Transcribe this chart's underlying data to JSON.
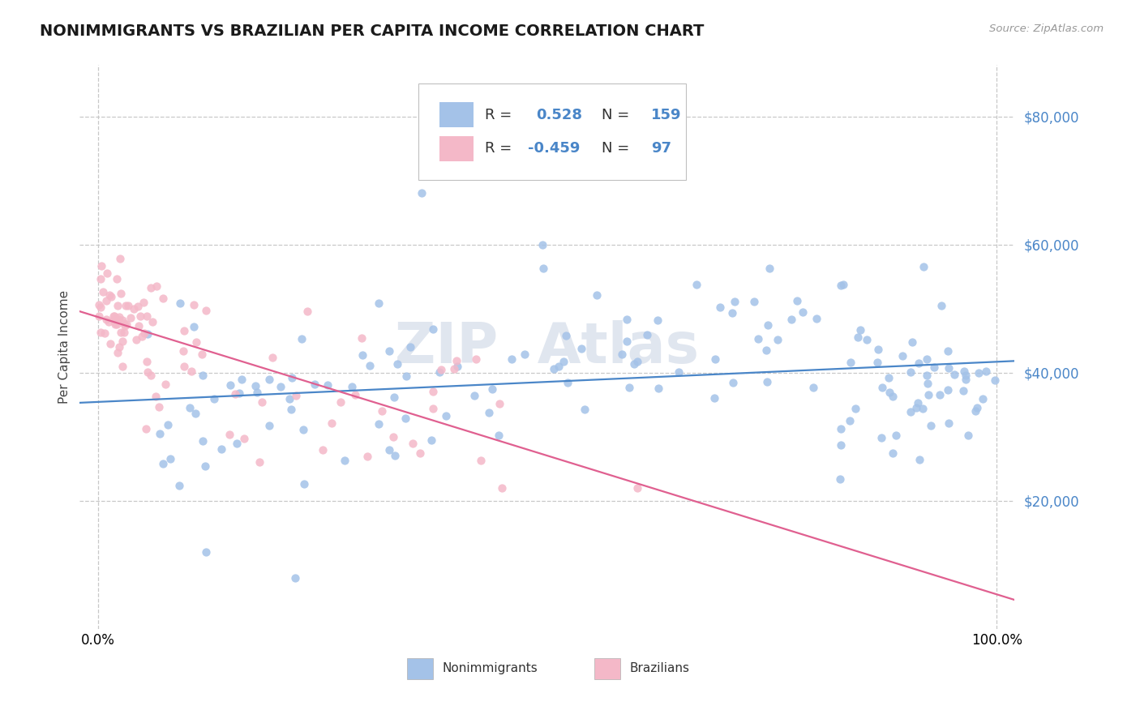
{
  "title": "NONIMMIGRANTS VS BRAZILIAN PER CAPITA INCOME CORRELATION CHART",
  "source_text": "Source: ZipAtlas.com",
  "ylabel": "Per Capita Income",
  "xlim": [
    -0.02,
    1.02
  ],
  "ylim": [
    0,
    88000
  ],
  "yticks": [
    20000,
    40000,
    60000,
    80000
  ],
  "xticks": [
    0.0,
    1.0
  ],
  "background_color": "#ffffff",
  "grid_color": "#c8c8c8",
  "blue_scatter_color": "#a4c2e8",
  "pink_scatter_color": "#f4b8c8",
  "blue_line_color": "#4a86c8",
  "pink_line_color": "#e06090",
  "ytick_color": "#4a86c8",
  "r_blue": 0.528,
  "n_blue": 159,
  "r_pink": -0.459,
  "n_pink": 97,
  "legend_label_nonimm": "Nonimmigrants",
  "legend_label_braz": "Brazilians",
  "title_fontsize": 14,
  "watermark_text": "ZIP  Atlas",
  "watermark_color": "#bcc8dc"
}
